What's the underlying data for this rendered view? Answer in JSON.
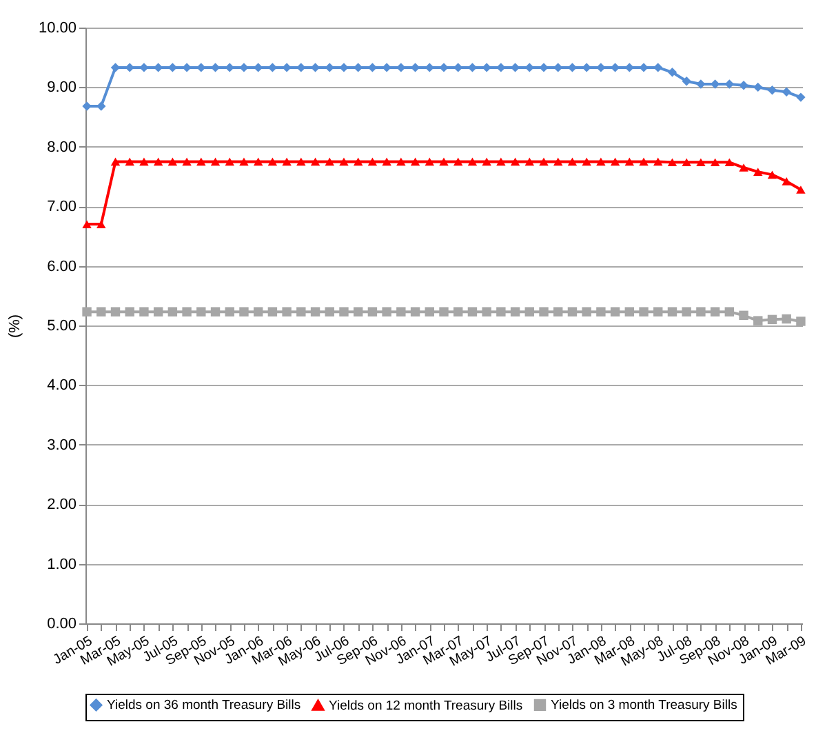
{
  "chart_data": {
    "type": "line",
    "ylabel": "(%)",
    "categories": [
      "Jan-05",
      null,
      "Mar-05",
      null,
      "May-05",
      null,
      "Jul-05",
      null,
      "Sep-05",
      null,
      "Nov-05",
      null,
      "Jan-06",
      null,
      "Mar-06",
      null,
      "May-06",
      null,
      "Jul-06",
      null,
      "Sep-06",
      null,
      "Nov-06",
      null,
      "Jan-07",
      null,
      "Mar-07",
      null,
      "May-07",
      null,
      "Jul-07",
      null,
      "Sep-07",
      null,
      "Nov-07",
      null,
      "Jan-08",
      null,
      "Mar-08",
      null,
      "May-08",
      null,
      "Jul-08",
      null,
      "Sep-08",
      null,
      "Nov-08",
      null,
      "Jan-09",
      null,
      "Mar-09"
    ],
    "series": [
      {
        "name": "Yields on 36 month Treasury Bills",
        "color": "#558ed5",
        "marker": "diamond",
        "values": [
          8.68,
          8.68,
          9.33,
          9.33,
          9.33,
          9.33,
          9.33,
          9.33,
          9.33,
          9.33,
          9.33,
          9.33,
          9.33,
          9.33,
          9.33,
          9.33,
          9.33,
          9.33,
          9.33,
          9.33,
          9.33,
          9.33,
          9.33,
          9.33,
          9.33,
          9.33,
          9.33,
          9.33,
          9.33,
          9.33,
          9.33,
          9.33,
          9.33,
          9.33,
          9.33,
          9.33,
          9.33,
          9.33,
          9.33,
          9.33,
          9.33,
          9.25,
          9.1,
          9.05,
          9.05,
          9.05,
          9.03,
          9.0,
          8.95,
          8.92,
          8.83
        ]
      },
      {
        "name": "Yields on 12 month Treasury Bills",
        "color": "#ff0000",
        "marker": "triangle",
        "values": [
          6.7,
          6.7,
          7.75,
          7.75,
          7.75,
          7.75,
          7.75,
          7.75,
          7.75,
          7.75,
          7.75,
          7.75,
          7.75,
          7.75,
          7.75,
          7.75,
          7.75,
          7.75,
          7.75,
          7.75,
          7.75,
          7.75,
          7.75,
          7.75,
          7.75,
          7.75,
          7.75,
          7.75,
          7.75,
          7.75,
          7.75,
          7.75,
          7.75,
          7.75,
          7.75,
          7.75,
          7.75,
          7.75,
          7.75,
          7.75,
          7.75,
          7.74,
          7.74,
          7.74,
          7.74,
          7.74,
          7.65,
          7.58,
          7.53,
          7.42,
          7.28
        ]
      },
      {
        "name": "Yields on 3 month Treasury Bills",
        "color": "#a6a6a6",
        "marker": "square",
        "values": [
          5.23,
          5.23,
          5.23,
          5.23,
          5.23,
          5.23,
          5.23,
          5.23,
          5.23,
          5.23,
          5.23,
          5.23,
          5.23,
          5.23,
          5.23,
          5.23,
          5.23,
          5.23,
          5.23,
          5.23,
          5.23,
          5.23,
          5.23,
          5.23,
          5.23,
          5.23,
          5.23,
          5.23,
          5.23,
          5.23,
          5.23,
          5.23,
          5.23,
          5.23,
          5.23,
          5.23,
          5.23,
          5.23,
          5.23,
          5.23,
          5.23,
          5.23,
          5.23,
          5.23,
          5.23,
          5.23,
          5.17,
          5.08,
          5.1,
          5.11,
          5.07
        ]
      }
    ],
    "ylim": [
      0,
      10
    ],
    "yticks": [
      {
        "value": 0,
        "label": "0.00"
      },
      {
        "value": 1,
        "label": "1.00"
      },
      {
        "value": 2,
        "label": "2.00"
      },
      {
        "value": 3,
        "label": "3.00"
      },
      {
        "value": 4,
        "label": "4.00"
      },
      {
        "value": 5,
        "label": "5.00"
      },
      {
        "value": 6,
        "label": "6.00"
      },
      {
        "value": 7,
        "label": "7.00"
      },
      {
        "value": 8,
        "label": "8.00"
      },
      {
        "value": 9,
        "label": "9.00"
      },
      {
        "value": 10,
        "label": "10.00"
      }
    ],
    "grid": "y",
    "legend": "bottom",
    "line_style": "solid"
  }
}
